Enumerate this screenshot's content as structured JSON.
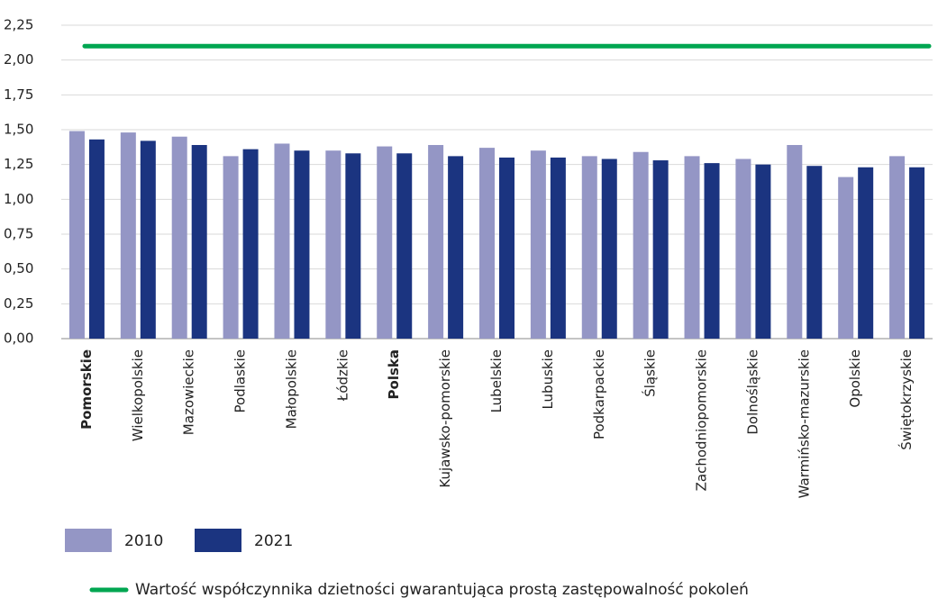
{
  "chart_data": {
    "type": "bar",
    "categories": [
      "Pomorskie",
      "Wielkopolskie",
      "Mazowieckie",
      "Podlaskie",
      "Małopolskie",
      "Łódzkie",
      "Polska",
      "Kujawsko-pomorskie",
      "Lubelskie",
      "Lubuskie",
      "Podkarpackie",
      "Śląskie",
      "Zachodniopomorskie",
      "Dolnośląskie",
      "Warmińsko-mazurskie",
      "Opolskie",
      "Świętokrzyskie"
    ],
    "highlight": [
      0,
      6
    ],
    "series": [
      {
        "name": "2010",
        "color": "#9496c5",
        "values": [
          1.49,
          1.48,
          1.45,
          1.31,
          1.4,
          1.35,
          1.38,
          1.39,
          1.37,
          1.35,
          1.31,
          1.34,
          1.31,
          1.29,
          1.39,
          1.16,
          1.31
        ]
      },
      {
        "name": "2021",
        "color": "#1b3480",
        "values": [
          1.43,
          1.42,
          1.39,
          1.36,
          1.35,
          1.33,
          1.33,
          1.31,
          1.3,
          1.3,
          1.29,
          1.28,
          1.26,
          1.25,
          1.24,
          1.23,
          1.23
        ]
      }
    ],
    "reference_lines": [
      {
        "name": "Wartość współczynnika dzietności gwarantująca prostą zastępowalność pokoleń",
        "value": 2.1,
        "color": "#00a651"
      }
    ],
    "ylim": [
      0,
      2.25
    ],
    "yticks": [
      {
        "value": 0,
        "label": "0,00"
      },
      {
        "value": 0.25,
        "label": "0,25"
      },
      {
        "value": 0.5,
        "label": "0,50"
      },
      {
        "value": 0.75,
        "label": "0,75"
      },
      {
        "value": 1,
        "label": "1,00"
      },
      {
        "value": 1.25,
        "label": "1,25"
      },
      {
        "value": 1.5,
        "label": "1,50"
      },
      {
        "value": 1.75,
        "label": "1,75"
      },
      {
        "value": 2,
        "label": "2,00"
      },
      {
        "value": 2.25,
        "label": "2,25"
      }
    ],
    "grid": true
  }
}
